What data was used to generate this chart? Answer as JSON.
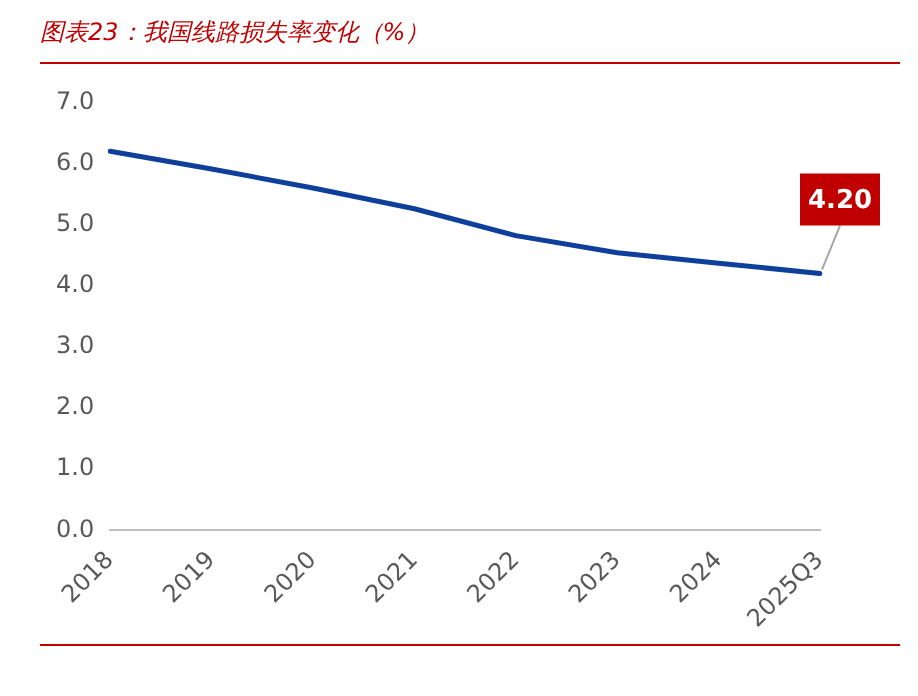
{
  "chart_data": {
    "type": "line",
    "title": "图表23：我国线路损失率变化（%）",
    "categories": [
      "2018",
      "2019",
      "2020",
      "2021",
      "2022",
      "2023",
      "2024",
      "2025Q3"
    ],
    "series": [
      {
        "color": "#0d3f9b",
        "values": [
          6.2,
          5.91,
          5.6,
          5.26,
          4.82,
          4.54,
          4.37,
          4.2
        ],
        "value_labels": [
          null,
          null,
          null,
          null,
          null,
          null,
          null,
          "4.20"
        ]
      }
    ],
    "ylim": [
      0,
      7
    ],
    "yticks": [
      {
        "value": 0,
        "label": "0.0"
      },
      {
        "value": 1,
        "label": "1.0"
      },
      {
        "value": 2,
        "label": "2.0"
      },
      {
        "value": 3,
        "label": "3.0"
      },
      {
        "value": 4,
        "label": "4.0"
      },
      {
        "value": 5,
        "label": "5.0"
      },
      {
        "value": 6,
        "label": "6.0"
      },
      {
        "value": 7,
        "label": "7.0"
      }
    ],
    "grid": false,
    "legend": false,
    "marker": "none",
    "line_style": "solid"
  }
}
